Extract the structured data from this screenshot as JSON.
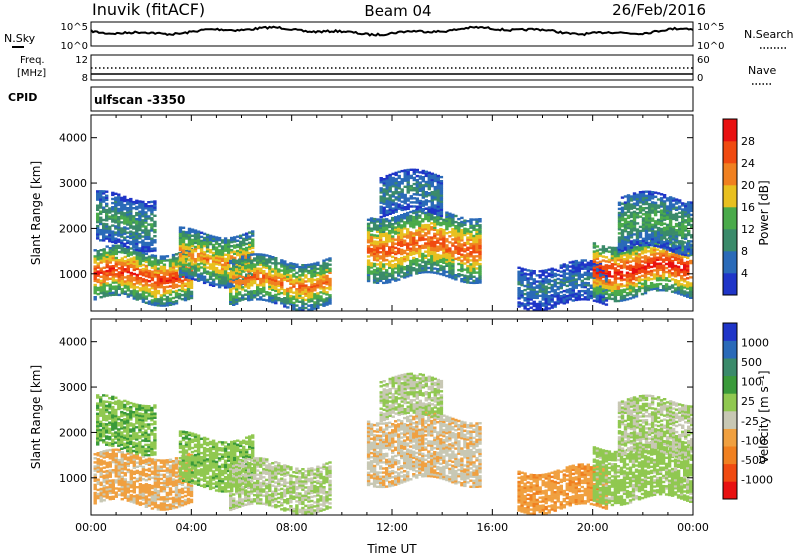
{
  "header": {
    "station": "Inuvik (fitACF)",
    "beam": "Beam 04",
    "date": "26/Feb/2016"
  },
  "noise_panel": {
    "left_label": "N.Sky",
    "right_label": "N.Search",
    "left_ticks": [
      "10^5",
      "10^0"
    ],
    "right_ticks": [
      "10^5",
      "10^0"
    ]
  },
  "freq_panel": {
    "left_label_line1": "Freq.",
    "left_label_line2": "[MHz]",
    "right_label": "Nave",
    "left_ticks": [
      "12",
      "8"
    ],
    "right_ticks": [
      "60",
      "0"
    ]
  },
  "cpid_panel": {
    "label": "CPID",
    "value": "ulfscan -3350"
  },
  "colors": {
    "power": [
      "#1f35c8",
      "#2a6ab8",
      "#3a8a6a",
      "#4aaa4a",
      "#e8c020",
      "#f08020",
      "#f04a10",
      "#e81010"
    ],
    "velocity": [
      "#e81010",
      "#f04a10",
      "#f08020",
      "#f0a040",
      "#c8c8b4",
      "#90c850",
      "#3a9a3a",
      "#3a8a6a",
      "#2a6ab8",
      "#1f35c8"
    ]
  },
  "chart_data": [
    {
      "type": "heatmap",
      "name": "power",
      "xlabel": "",
      "ylabel": "Slant Range [km]",
      "yticks": [
        "1000",
        "2000",
        "3000",
        "4000"
      ],
      "xticks": [
        "00:00",
        "04:00",
        "08:00",
        "12:00",
        "16:00",
        "20:00",
        "00:00"
      ],
      "xlim": [
        0,
        24
      ],
      "ylim": [
        180,
        4500
      ],
      "colorbar": {
        "label": "Power [dB]",
        "ticks": [
          "4",
          "8",
          "12",
          "16",
          "20",
          "24",
          "28"
        ],
        "range": [
          0,
          32
        ]
      },
      "echo_bands": [
        {
          "t0": 0.1,
          "t1": 4.0,
          "r_low": 400,
          "r_high": 1500,
          "peak": 28
        },
        {
          "t0": 0.2,
          "t1": 2.5,
          "r_low": 1600,
          "r_high": 2700,
          "peak": 12
        },
        {
          "t0": 3.5,
          "t1": 6.5,
          "r_low": 800,
          "r_high": 1900,
          "peak": 22
        },
        {
          "t0": 5.5,
          "t1": 9.5,
          "r_low": 300,
          "r_high": 1300,
          "peak": 24
        },
        {
          "t0": 11.0,
          "t1": 15.5,
          "r_low": 900,
          "r_high": 2300,
          "peak": 26
        },
        {
          "t0": 11.5,
          "t1": 14.0,
          "r_low": 2300,
          "r_high": 3200,
          "peak": 10
        },
        {
          "t0": 17.0,
          "t1": 20.5,
          "r_low": 300,
          "r_high": 1200,
          "peak": 8
        },
        {
          "t0": 20.0,
          "t1": 23.9,
          "r_low": 500,
          "r_high": 1700,
          "peak": 30
        },
        {
          "t0": 21.0,
          "t1": 23.9,
          "r_low": 1500,
          "r_high": 2700,
          "peak": 14
        }
      ]
    },
    {
      "type": "heatmap",
      "name": "velocity",
      "xlabel": "Time UT",
      "ylabel": "Slant Range [km]",
      "yticks": [
        "1000",
        "2000",
        "3000",
        "4000"
      ],
      "xticks": [
        "00:00",
        "04:00",
        "08:00",
        "12:00",
        "16:00",
        "20:00",
        "00:00"
      ],
      "xlim": [
        0,
        24
      ],
      "ylim": [
        180,
        4500
      ],
      "colorbar": {
        "label": "Velocity [m s⁻¹]",
        "ticks": [
          "-1000",
          "-500",
          "-100",
          "-25",
          "25",
          "100",
          "500",
          "1000"
        ],
        "range": [
          -1200,
          1200
        ]
      },
      "echo_bands": [
        {
          "t0": 0.1,
          "t1": 4.0,
          "r_low": 400,
          "r_high": 1500,
          "peak": -300
        },
        {
          "t0": 0.2,
          "t1": 2.5,
          "r_low": 1600,
          "r_high": 2700,
          "peak": 200
        },
        {
          "t0": 3.5,
          "t1": 6.5,
          "r_low": 800,
          "r_high": 1900,
          "peak": 150
        },
        {
          "t0": 5.5,
          "t1": 9.5,
          "r_low": 300,
          "r_high": 1300,
          "peak": 0
        },
        {
          "t0": 11.0,
          "t1": 15.5,
          "r_low": 900,
          "r_high": 2300,
          "peak": -200
        },
        {
          "t0": 11.5,
          "t1": 14.0,
          "r_low": 2300,
          "r_high": 3200,
          "peak": 0
        },
        {
          "t0": 17.0,
          "t1": 20.5,
          "r_low": 300,
          "r_high": 1200,
          "peak": -400
        },
        {
          "t0": 20.0,
          "t1": 23.9,
          "r_low": 500,
          "r_high": 1700,
          "peak": 100
        },
        {
          "t0": 21.0,
          "t1": 23.9,
          "r_low": 1500,
          "r_high": 2700,
          "peak": 0
        }
      ]
    }
  ]
}
